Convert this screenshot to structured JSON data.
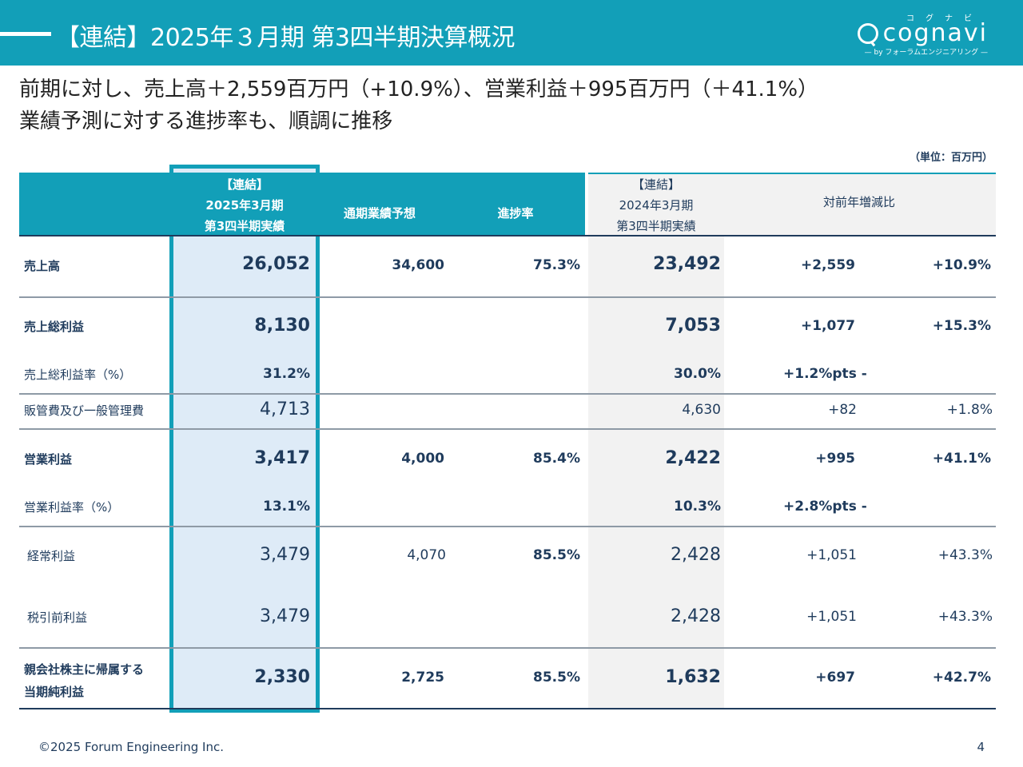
{
  "header": {
    "title": "【連結】2025年３月期 第3四半期決算概況",
    "logo_kana": "コグナビ",
    "logo_word": "cognavi",
    "logo_sub": "— by フォーラムエンジニアリング —"
  },
  "subtitle": {
    "line1": "前期に対し、売上高＋2,559百万円（+10.9%）、営業利益＋995百万円（＋41.1%）",
    "line2": "業績予測に対する進捗率も、順調に推移"
  },
  "unit": "（単位：百万円）",
  "table": {
    "headers": {
      "current_l1": "【連結】",
      "current_l2": "2025年3月期",
      "current_l3": "第3四半期実績",
      "forecast": "通期業績予想",
      "progress": "進捗率",
      "prev_l1": "【連結】",
      "prev_l2": "2024年3月期",
      "prev_l3": "第3四半期実績",
      "yoy": "対前年増減比"
    },
    "rows": [
      {
        "label": "売上高",
        "current": "26,052",
        "forecast": "34,600",
        "progress": "75.3%",
        "prev": "23,492",
        "diff": "+2,559",
        "pct": "+10.9%"
      },
      {
        "label": "売上総利益",
        "current": "8,130",
        "forecast": "",
        "progress": "",
        "prev": "7,053",
        "diff": "+1,077",
        "pct": "+15.3%"
      },
      {
        "label": "売上総利益率（%）",
        "current": "31.2%",
        "forecast": "",
        "progress": "",
        "prev": "30.0%",
        "diff": "+1.2%pts -",
        "pct": ""
      },
      {
        "label": "販管費及び一般管理費",
        "current": "4,713",
        "forecast": "",
        "progress": "",
        "prev": "4,630",
        "diff": "+82",
        "pct": "+1.8%"
      },
      {
        "label": "営業利益",
        "current": "3,417",
        "forecast": "4,000",
        "progress": "85.4%",
        "prev": "2,422",
        "diff": "+995",
        "pct": "+41.1%"
      },
      {
        "label": "営業利益率（%）",
        "current": "13.1%",
        "forecast": "",
        "progress": "",
        "prev": "10.3%",
        "diff": "+2.8%pts -",
        "pct": ""
      },
      {
        "label": "経常利益",
        "current": "3,479",
        "forecast": "4,070",
        "progress": "85.5%",
        "prev": "2,428",
        "diff": "+1,051",
        "pct": "+43.3%"
      },
      {
        "label": "税引前利益",
        "current": "3,479",
        "forecast": "",
        "progress": "",
        "prev": "2,428",
        "diff": "+1,051",
        "pct": "+43.3%"
      },
      {
        "label_l1": "親会社株主に帰属する",
        "label_l2": "当期純利益",
        "current": "2,330",
        "forecast": "2,725",
        "progress": "85.5%",
        "prev": "1,632",
        "diff": "+697",
        "pct": "+42.7%"
      }
    ]
  },
  "footer": {
    "copyright": "©2025 Forum Engineering Inc.",
    "page": "4"
  },
  "colors": {
    "brand": "#129fb8",
    "highlight_fill": "#deebf7",
    "text_navy": "#1f3b5c"
  }
}
